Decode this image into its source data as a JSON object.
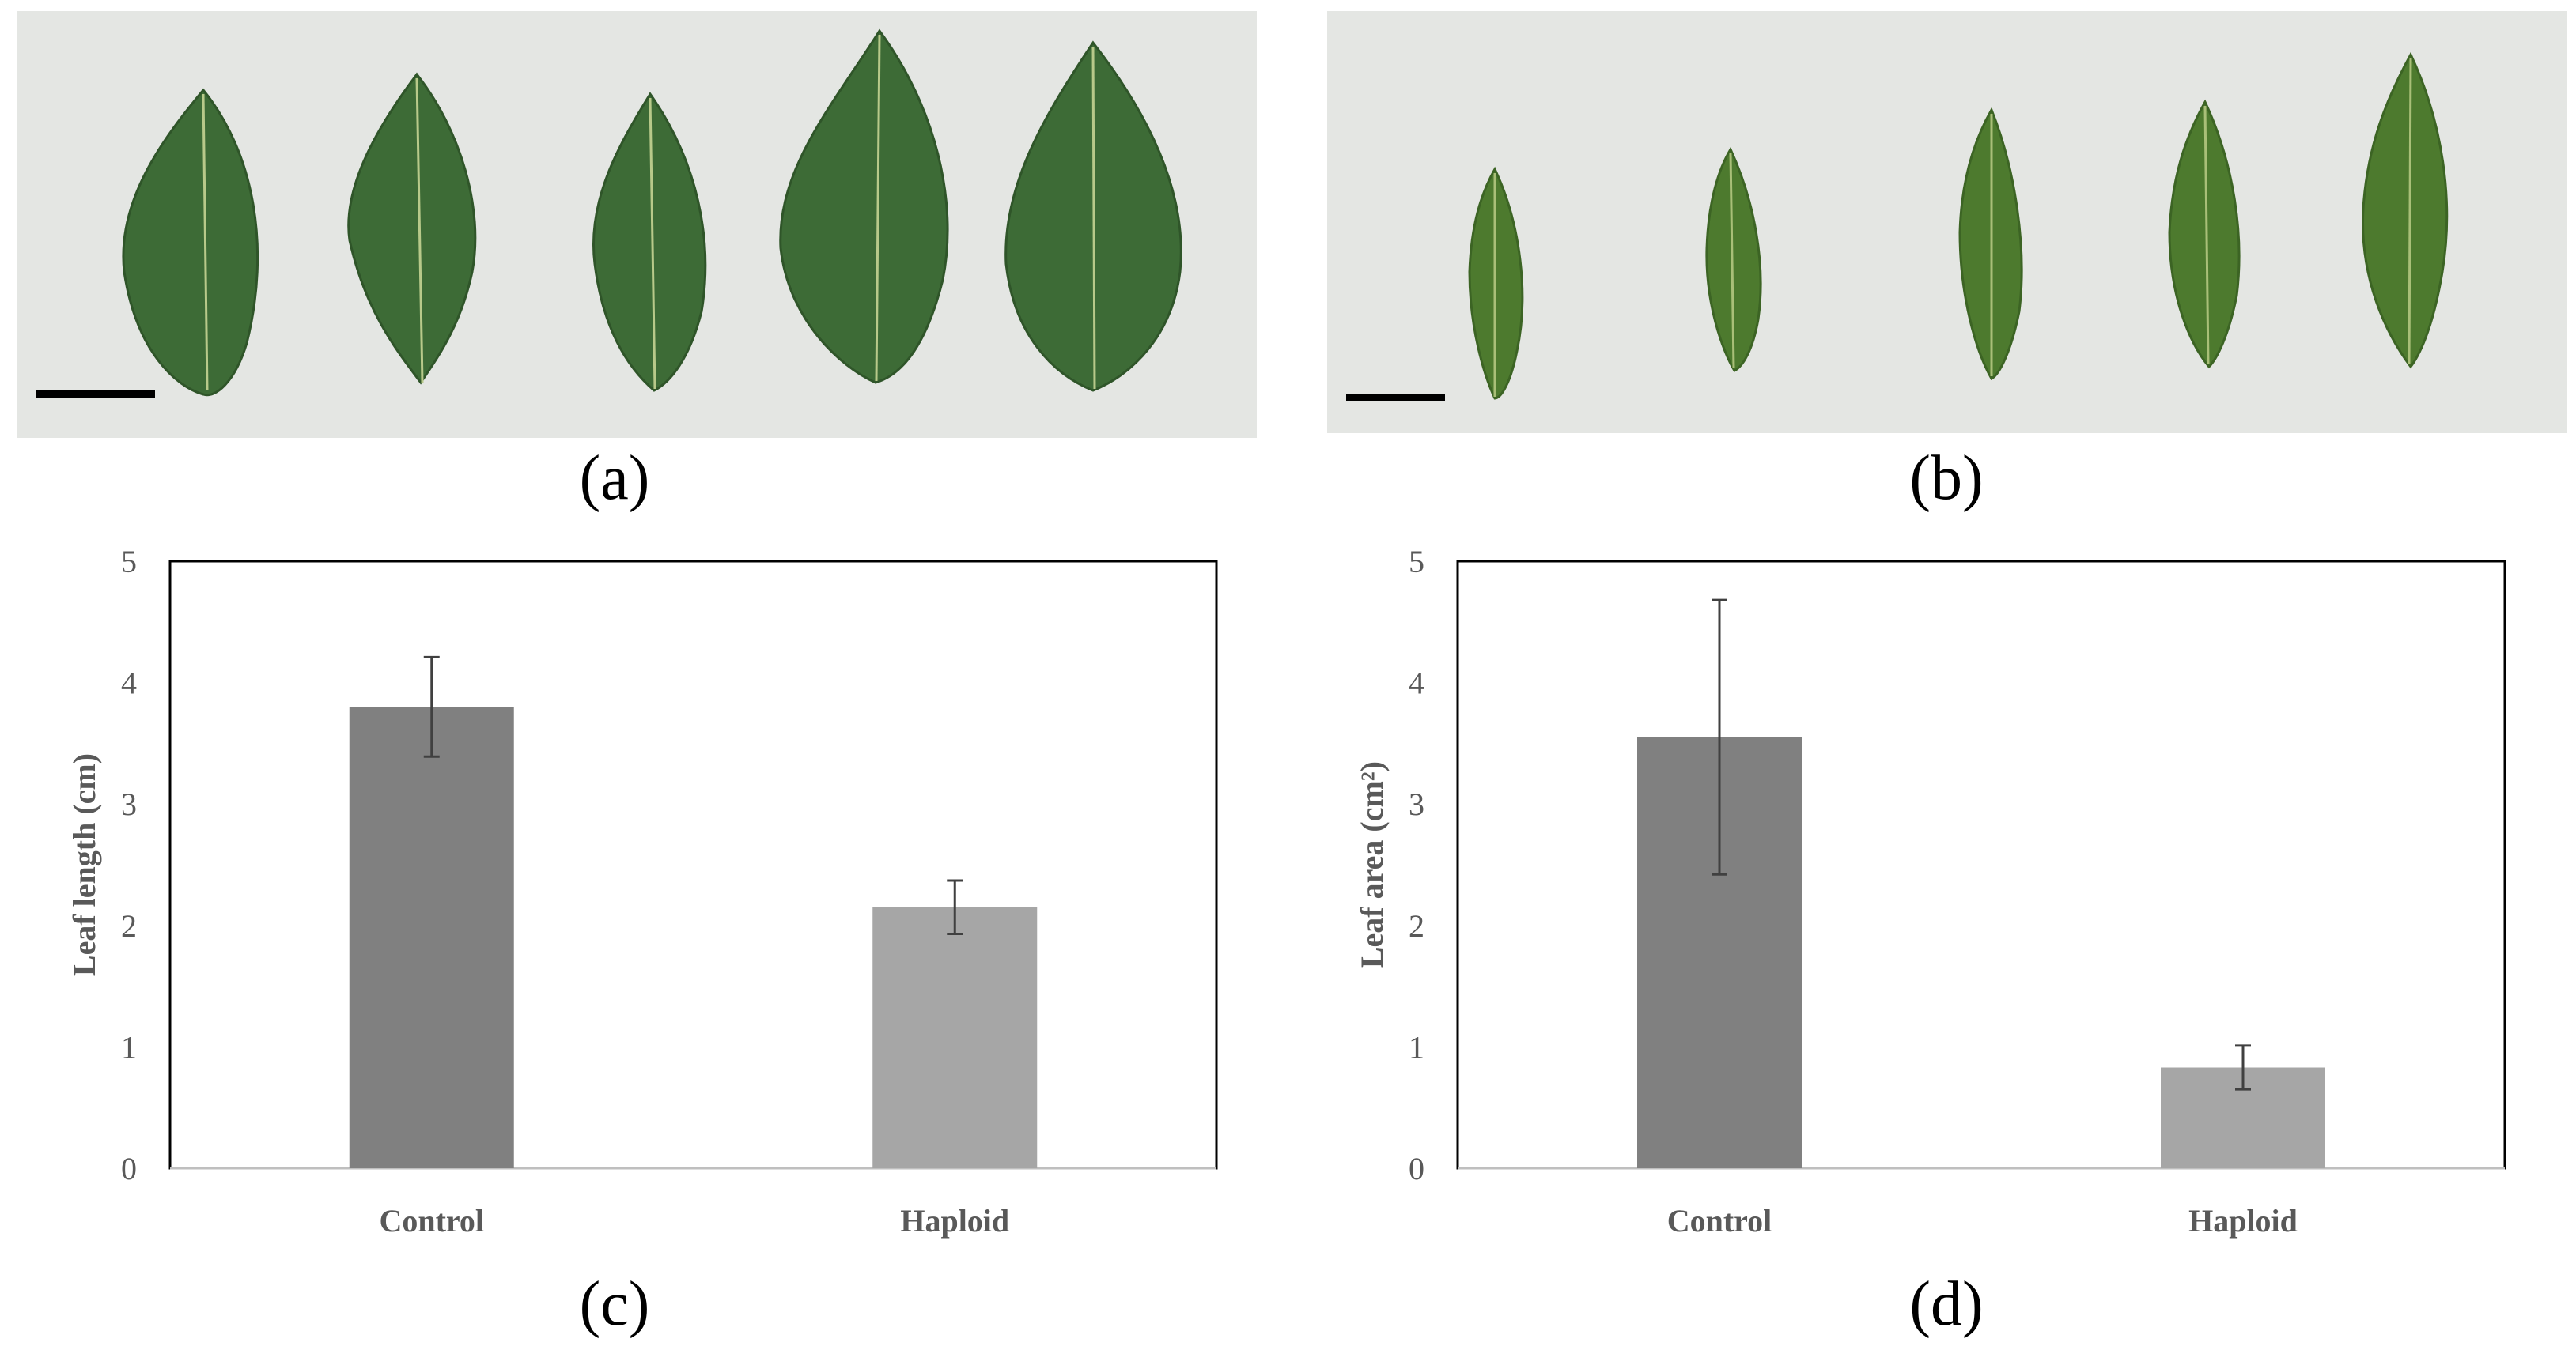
{
  "figure": {
    "panel_labels": [
      "(a)",
      "(b)",
      "(c)",
      "(d)"
    ],
    "photo_a": {
      "content": "five-broad-serrated-leaves",
      "background": "#e4e6e3",
      "leaf_color": "#3d6b36"
    },
    "photo_b": {
      "content": "five-narrow-lanceolate-leaves",
      "background": "#e4e6e3",
      "leaf_color": "#4d7a2e"
    }
  },
  "chart_data": [
    {
      "type": "bar",
      "categories": [
        "Control",
        "Haploid"
      ],
      "values": [
        3.8,
        2.15
      ],
      "errors": [
        0.41,
        0.22
      ],
      "colors": [
        "#808080",
        "#a6a6a6"
      ],
      "ylabel": "Leaf length (cm)",
      "xlabel": "",
      "title": "",
      "ylim": [
        0,
        5
      ],
      "yticks": [
        "0",
        "1",
        "2",
        "3",
        "4",
        "5"
      ],
      "grid": false
    },
    {
      "type": "bar",
      "categories": [
        "Control",
        "Haploid"
      ],
      "values": [
        3.55,
        0.83
      ],
      "errors": [
        1.13,
        0.18
      ],
      "colors": [
        "#808080",
        "#a6a6a6"
      ],
      "ylabel": "Leaf area (cm²)",
      "xlabel": "",
      "title": "",
      "ylim": [
        0,
        5
      ],
      "yticks": [
        "0",
        "1",
        "2",
        "3",
        "4",
        "5"
      ],
      "grid": false
    }
  ]
}
